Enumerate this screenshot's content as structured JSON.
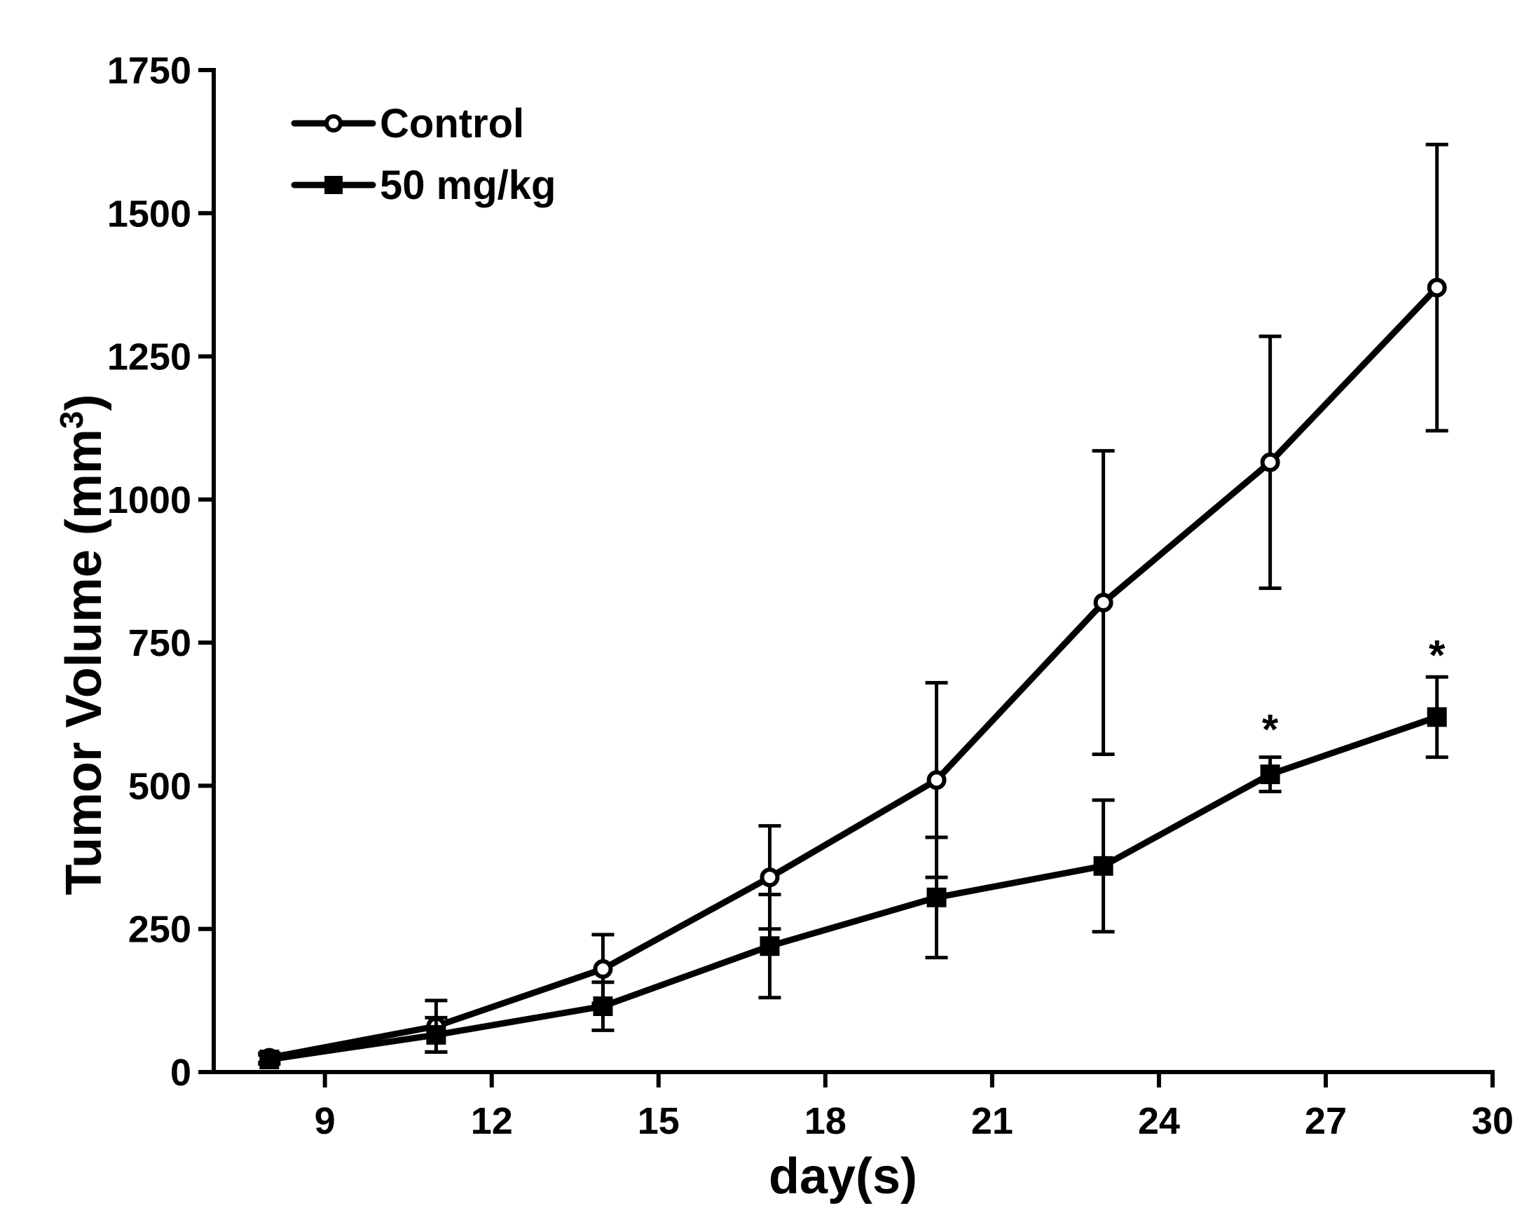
{
  "chart_data": {
    "type": "line",
    "title": "",
    "xlabel": "day(s)",
    "ylabel": "Tumor Volume (mm",
    "ylabel_superscript": "3",
    "ylabel_suffix": ")",
    "xlim": [
      7,
      30
    ],
    "ylim": [
      0,
      1750
    ],
    "xticks": [
      9,
      12,
      15,
      18,
      21,
      24,
      27,
      30
    ],
    "yticks": [
      0,
      250,
      500,
      750,
      1000,
      1250,
      1500,
      1750
    ],
    "x": [
      8,
      11,
      14,
      17,
      20,
      23,
      26,
      29
    ],
    "series": [
      {
        "name": "Control",
        "marker": "circle",
        "values": [
          25,
          80,
          180,
          340,
          510,
          820,
          1065,
          1370
        ],
        "errors": [
          8,
          45,
          60,
          90,
          170,
          265,
          220,
          250
        ]
      },
      {
        "name": "50 mg/kg",
        "marker": "square",
        "values": [
          22,
          65,
          115,
          220,
          305,
          360,
          520,
          620
        ],
        "errors": [
          8,
          30,
          42,
          90,
          105,
          115,
          30,
          70
        ]
      }
    ],
    "legend": {
      "position": "top-left",
      "entries": [
        "Control",
        "50 mg/kg"
      ]
    },
    "annotations": [
      {
        "text": "*",
        "x": 26,
        "y": 600
      },
      {
        "text": "*",
        "x": 29,
        "y": 730
      }
    ],
    "grid": false
  }
}
